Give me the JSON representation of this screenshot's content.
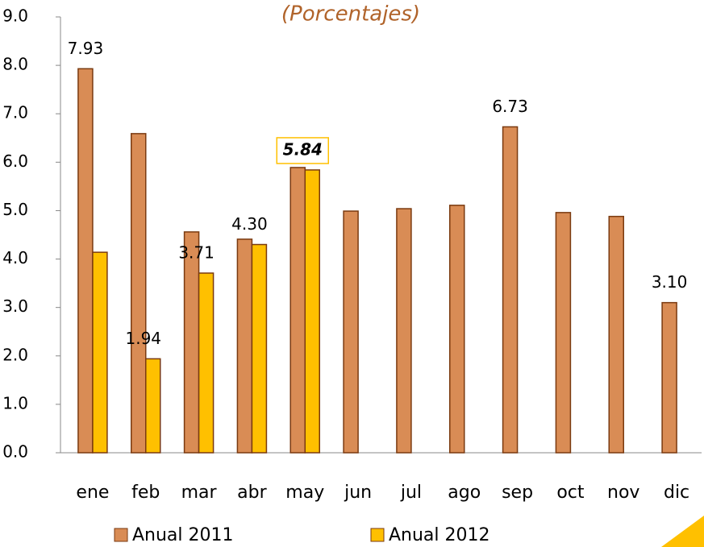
{
  "chart_data": {
    "type": "bar",
    "title": "(Porcentajes)",
    "categories": [
      "ene",
      "feb",
      "mar",
      "abr",
      "may",
      "jun",
      "jul",
      "ago",
      "sep",
      "oct",
      "nov",
      "dic"
    ],
    "series": [
      {
        "name": "Anual 2011",
        "color": "#D98C55",
        "values": [
          7.93,
          6.59,
          4.56,
          4.41,
          5.89,
          4.99,
          5.04,
          5.11,
          6.73,
          4.96,
          4.88,
          3.1
        ],
        "value_labels": [
          "7.93",
          null,
          null,
          null,
          null,
          null,
          null,
          null,
          "6.73",
          null,
          null,
          "3.10"
        ]
      },
      {
        "name": "Anual 2012",
        "color": "#FFC000",
        "values": [
          4.14,
          1.94,
          3.71,
          4.3,
          5.84,
          null,
          null,
          null,
          null,
          null,
          null,
          null
        ],
        "value_labels": [
          null,
          "1.94",
          "3.71",
          "4.30",
          "5.84",
          null,
          null,
          null,
          null,
          null,
          null,
          null
        ]
      }
    ],
    "ylim": [
      0,
      9
    ],
    "yticks": [
      {
        "value": 0,
        "label": "0.0"
      },
      {
        "value": 1,
        "label": "1.0"
      },
      {
        "value": 2,
        "label": "2.0"
      },
      {
        "value": 3,
        "label": "3.0"
      },
      {
        "value": 4,
        "label": "4.0"
      },
      {
        "value": 5,
        "label": "5.0"
      },
      {
        "value": 6,
        "label": "6.0"
      },
      {
        "value": 7,
        "label": "7.0"
      },
      {
        "value": 8,
        "label": "8.0"
      },
      {
        "value": 9,
        "label": "9.0"
      }
    ],
    "grid": false,
    "legend": "bottom"
  }
}
